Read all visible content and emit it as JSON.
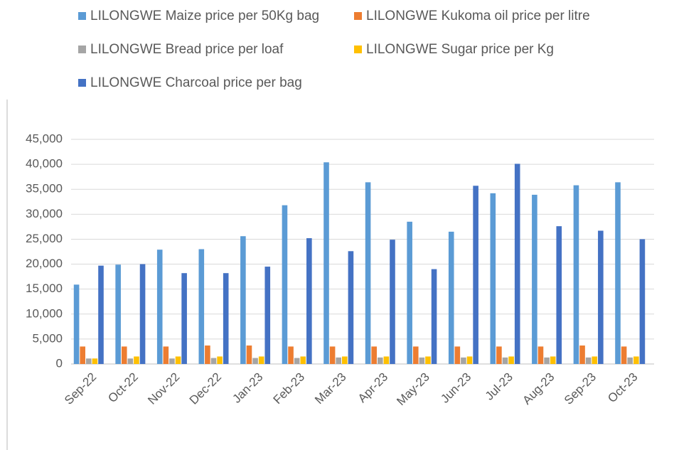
{
  "chart_data": {
    "type": "bar",
    "categories": [
      "Sep-22",
      "Oct-22",
      "Nov-22",
      "Dec-22",
      "Jan-23",
      "Feb-23",
      "Mar-23",
      "Apr-23",
      "May-23",
      "Jun-23",
      "Jul-23",
      "Aug-23",
      "Sep-23",
      "Oct-23"
    ],
    "series": [
      {
        "name": "LILONGWE Maize price per 50Kg bag",
        "color": "#5B9BD5",
        "values": [
          15900,
          19900,
          22900,
          23000,
          25600,
          31800,
          40400,
          36400,
          28500,
          26500,
          34200,
          33900,
          35800,
          36400
        ]
      },
      {
        "name": "LILONGWE Kukoma oil price per litre",
        "color": "#ED7D31",
        "values": [
          3500,
          3500,
          3500,
          3700,
          3700,
          3500,
          3500,
          3500,
          3500,
          3500,
          3500,
          3500,
          3700,
          3500
        ]
      },
      {
        "name": "LILONGWE Bread price per loaf",
        "color": "#A5A5A5",
        "values": [
          1100,
          1100,
          1100,
          1200,
          1200,
          1200,
          1300,
          1300,
          1300,
          1300,
          1300,
          1300,
          1300,
          1300
        ]
      },
      {
        "name": "LILONGWE Sugar price per Kg",
        "color": "#FFC000",
        "values": [
          1100,
          1500,
          1500,
          1500,
          1500,
          1500,
          1500,
          1500,
          1500,
          1500,
          1500,
          1500,
          1500,
          1500
        ]
      },
      {
        "name": "LILONGWE Charcoal price per bag",
        "color": "#4472C4",
        "values": [
          19700,
          20000,
          18200,
          18200,
          19500,
          25200,
          22600,
          24900,
          19000,
          35700,
          40100,
          27600,
          26700,
          25000
        ]
      }
    ],
    "ylim": [
      0,
      45000
    ],
    "yticks": [
      0,
      {
        "value": 5000,
        "label": "5,000"
      },
      {
        "value": 10000,
        "label": "10,000"
      },
      {
        "value": 15000,
        "label": "15,000"
      },
      {
        "value": 20000,
        "label": "20,000"
      },
      {
        "value": 25000,
        "label": "25,000"
      },
      {
        "value": 30000,
        "label": "30,000"
      },
      {
        "value": 35000,
        "label": "35,000"
      },
      {
        "value": 40000,
        "label": "40,000"
      },
      {
        "value": 45000,
        "label": "45,000"
      }
    ],
    "grid": true,
    "legend": "top"
  }
}
